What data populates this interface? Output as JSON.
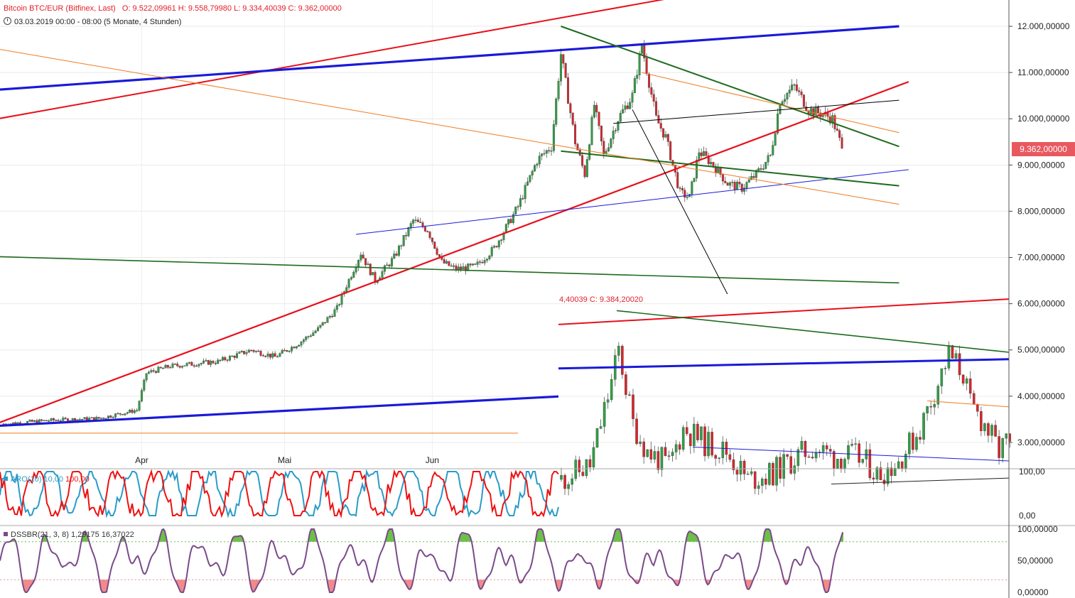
{
  "header": {
    "title": "Bitcoin BTC/EUR (Bitfinex, Last)",
    "ohlc": "O: 9.522,09961  H: 9.558,79980  L: 9.334,40039  C: 9.362,00000",
    "timeframe": "03.03.2019 00:00 - 08:00   (5 Monate, 4 Stunden)"
  },
  "price_tag": "9.362,00000",
  "inset_label": "4,40039  C: 9.384,20020",
  "indicators": {
    "aro": {
      "name": "ARO(10)",
      "v1": "10,00",
      "v2": "100,00"
    },
    "dss": {
      "name": "DSSBR(21, 3, 8)",
      "v1": "1,29175",
      "v2": "16,37022"
    }
  },
  "colors": {
    "up": "#2ea043",
    "down": "#d9262c",
    "red_line": "#e8101c",
    "blue_line": "#1a1ad8",
    "green_line": "#1e6b1e",
    "orange_line": "#f07a20",
    "aro_red": "#ee1111",
    "aro_blue": "#2a9bc8",
    "dss_line": "#7a4a8a",
    "dss_over": "#6cc04a",
    "dss_under": "#f08b8b",
    "tag": "#e8595f"
  },
  "chart_data": [
    {
      "type": "candlestick",
      "title": "Bitcoin BTC/EUR (Bitfinex, Last)",
      "ylim": [
        0,
        12500
      ],
      "yticks": [
        {
          "value": 12000,
          "label": "12.000,00000"
        },
        {
          "value": 11000,
          "label": "11.000,00000"
        },
        {
          "value": 10000,
          "label": "10.000,00000"
        },
        {
          "value": 9000,
          "label": "9.000,00000"
        },
        {
          "value": 8000,
          "label": "8.000,00000"
        },
        {
          "value": 7000,
          "label": "7.000,00000"
        },
        {
          "value": 6000,
          "label": "6.000,00000"
        },
        {
          "value": 5000,
          "label": "5.000,00000"
        },
        {
          "value": 4000,
          "label": "4.000,00000"
        },
        {
          "value": 3000,
          "label": "3.000,00000"
        }
      ],
      "xlim": [
        0,
        180
      ],
      "xticks": [
        {
          "day": 29,
          "label": "Apr"
        },
        {
          "day": 59,
          "label": "Mai"
        },
        {
          "day": 90,
          "label": "Jun"
        }
      ],
      "last_price": 9362,
      "series_keypoints": [
        [
          0,
          3400
        ],
        [
          10,
          3480
        ],
        [
          20,
          3520
        ],
        [
          28,
          3700
        ],
        [
          30,
          4500
        ],
        [
          35,
          4650
        ],
        [
          45,
          4750
        ],
        [
          52,
          5000
        ],
        [
          57,
          4850
        ],
        [
          62,
          5150
        ],
        [
          66,
          5450
        ],
        [
          70,
          5900
        ],
        [
          72,
          6400
        ],
        [
          75,
          7100
        ],
        [
          78,
          6500
        ],
        [
          82,
          7000
        ],
        [
          86,
          7800
        ],
        [
          89,
          7600
        ],
        [
          92,
          6900
        ],
        [
          95,
          6750
        ],
        [
          99,
          6800
        ],
        [
          103,
          7200
        ],
        [
          108,
          8100
        ],
        [
          112,
          9100
        ],
        [
          115,
          9400
        ],
        [
          117,
          11400
        ],
        [
          120,
          9500
        ],
        [
          122,
          8800
        ],
        [
          124,
          10300
        ],
        [
          126,
          9200
        ],
        [
          129,
          10000
        ],
        [
          132,
          10500
        ],
        [
          134,
          11600
        ],
        [
          137,
          10000
        ],
        [
          139,
          9600
        ],
        [
          142,
          8400
        ],
        [
          144,
          8300
        ],
        [
          146,
          9300
        ],
        [
          149,
          9000
        ],
        [
          152,
          8600
        ],
        [
          155,
          8500
        ],
        [
          158,
          8800
        ],
        [
          161,
          9200
        ],
        [
          163,
          10400
        ],
        [
          166,
          10700
        ],
        [
          169,
          10200
        ],
        [
          172,
          10100
        ],
        [
          174,
          10000
        ],
        [
          176,
          9362
        ]
      ],
      "trendlines": [
        {
          "color": "red_line",
          "width": 2.2,
          "p1": [
            -12,
            3000
          ],
          "p2": [
            190,
            10800
          ]
        },
        {
          "color": "red_line",
          "width": 2.0,
          "p1": [
            -12,
            9800
          ],
          "p2": [
            145,
            12700
          ]
        },
        {
          "color": "blue_line",
          "width": 3.2,
          "p1": [
            -12,
            3300
          ],
          "p2": [
            188,
            4380
          ]
        },
        {
          "color": "blue_line",
          "width": 3.2,
          "p1": [
            -12,
            10550
          ],
          "p2": [
            188,
            12000
          ]
        },
        {
          "color": "blue_line",
          "width": 1.0,
          "p1": [
            74,
            7500
          ],
          "p2": [
            190,
            8900
          ]
        },
        {
          "color": "green_line",
          "width": 1.6,
          "p1": [
            -12,
            7050
          ],
          "p2": [
            188,
            6450
          ]
        },
        {
          "color": "green_line",
          "width": 2.0,
          "p1": [
            117,
            9300
          ],
          "p2": [
            188,
            8550
          ]
        },
        {
          "color": "green_line",
          "width": 2.0,
          "p1": [
            117,
            12000
          ],
          "p2": [
            188,
            9400
          ]
        },
        {
          "color": "orange_line",
          "width": 1.0,
          "p1": [
            -12,
            11700
          ],
          "p2": [
            188,
            8150
          ]
        },
        {
          "color": "orange_line",
          "width": 1.0,
          "p1": [
            134,
            11000
          ],
          "p2": [
            188,
            9700
          ]
        },
        {
          "color": "orange_line",
          "width": 1.0,
          "p1": [
            -12,
            3200
          ],
          "p2": [
            108,
            3200
          ]
        },
        {
          "color": "black",
          "width": 1.0,
          "p1": [
            132,
            10200
          ],
          "p2": [
            154,
            5800
          ]
        },
        {
          "color": "black",
          "width": 1.0,
          "p1": [
            128,
            9900
          ],
          "p2": [
            188,
            10400
          ]
        }
      ]
    },
    {
      "type": "line",
      "name": "ARO(10)",
      "series": [
        {
          "name": "up"
        },
        {
          "name": "down"
        }
      ],
      "ylim": [
        0,
        100
      ],
      "yticks": [
        {
          "value": 100,
          "label": "100,00"
        },
        {
          "value": 0,
          "label": "0,00"
        }
      ]
    },
    {
      "type": "line",
      "name": "DSSBR(21, 3, 8)",
      "ylim": [
        0,
        100
      ],
      "yticks": [
        {
          "value": 100,
          "label": "100,00000"
        },
        {
          "value": 50,
          "label": "50,00000"
        },
        {
          "value": 0,
          "label": "0,00000"
        }
      ],
      "levels": [
        80,
        20
      ]
    }
  ]
}
